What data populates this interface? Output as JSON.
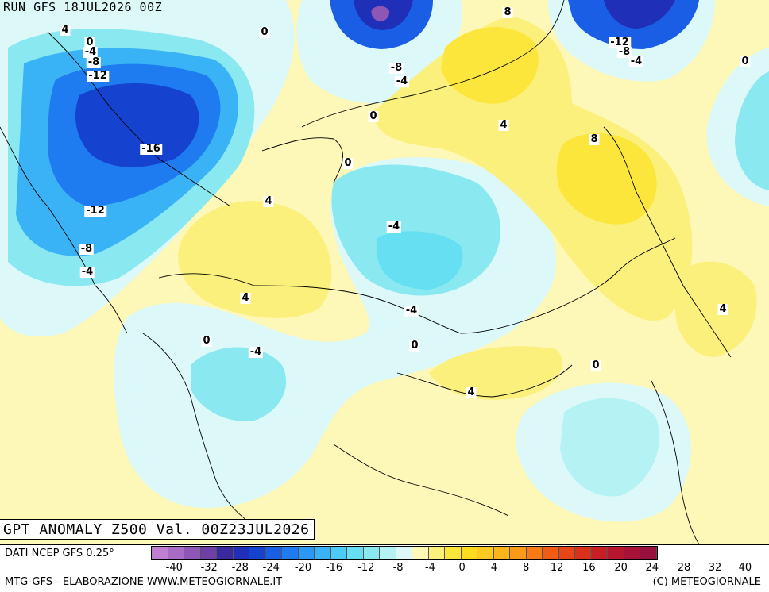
{
  "header": {
    "run_title": "RUN GFS 18JUL2026 00Z",
    "map_title": "GPT ANOMALY Z500 Val. 00Z23JUL2026"
  },
  "footer": {
    "source": "DATI NCEP GFS 0.25°",
    "credit_left": "MTG-GFS - ELABORAZIONE WWW.METEOGIORNALE.IT",
    "credit_right": "(C) METEOGIORNALE"
  },
  "legend": {
    "ticks": [
      "-40",
      "-32",
      "-28",
      "-24",
      "-20",
      "-16",
      "-12",
      "-8",
      "-4",
      "0",
      "4",
      "8",
      "12",
      "16",
      "20",
      "24",
      "28",
      "32",
      "40"
    ],
    "colors": [
      "#c07fd0",
      "#a86cc4",
      "#8e57b5",
      "#6e3fa5",
      "#3a2aa0",
      "#1f2fb8",
      "#1543d0",
      "#1a5ee6",
      "#1f7cf0",
      "#2a98f4",
      "#3ab3f6",
      "#4ccbf6",
      "#66dff2",
      "#8ae9f0",
      "#b4f2f4",
      "#dcf8f8",
      "#fdf7b8",
      "#fcf07c",
      "#fde63c",
      "#fedb1e",
      "#fec920",
      "#fdb51c",
      "#fb9a18",
      "#f77a16",
      "#f05c14",
      "#e64616",
      "#d8301a",
      "#c81f26",
      "#b8162e",
      "#a81236",
      "#98103e"
    ]
  },
  "contour_labels": [
    {
      "text": "4"
    },
    {
      "text": "0"
    },
    {
      "text": "-4"
    },
    {
      "text": "-8"
    },
    {
      "text": "-12"
    },
    {
      "text": "0"
    },
    {
      "text": "8"
    },
    {
      "text": "-12"
    },
    {
      "text": "-8"
    },
    {
      "text": "-4"
    },
    {
      "text": "0"
    },
    {
      "text": "-8"
    },
    {
      "text": "-4"
    },
    {
      "text": "0"
    },
    {
      "text": "-16"
    },
    {
      "text": "4"
    },
    {
      "text": "8"
    },
    {
      "text": "0"
    },
    {
      "text": "4"
    },
    {
      "text": "-12"
    },
    {
      "text": "-4"
    },
    {
      "text": "-8"
    },
    {
      "text": "-4"
    },
    {
      "text": "4"
    },
    {
      "text": "-4"
    },
    {
      "text": "4"
    },
    {
      "text": "0"
    },
    {
      "text": "-4"
    },
    {
      "text": "0"
    },
    {
      "text": "4"
    },
    {
      "text": "0"
    }
  ]
}
